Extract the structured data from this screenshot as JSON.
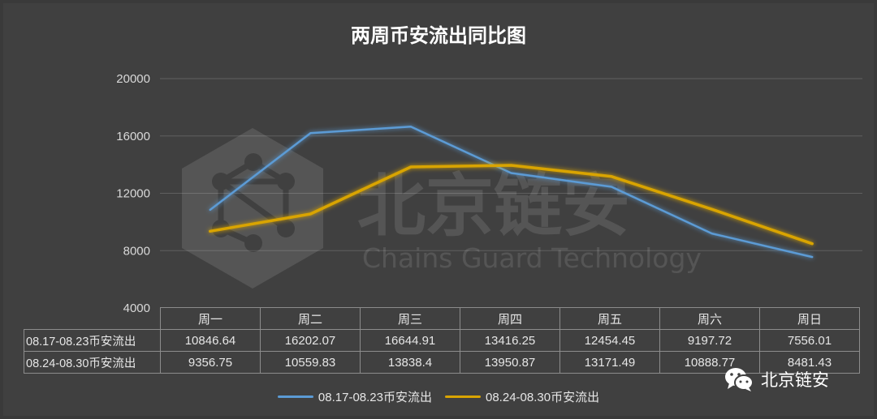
{
  "chart_data": {
    "type": "line",
    "title": "两周币安流出同比图",
    "categories": [
      "周一",
      "周二",
      "周三",
      "周四",
      "周五",
      "周六",
      "周日"
    ],
    "ylim": [
      4000,
      20000
    ],
    "yticks": [
      4000,
      8000,
      12000,
      16000,
      20000
    ],
    "grid": true,
    "legend": "bottom",
    "series": [
      {
        "name": "08.17-08.23币安流出",
        "color": "#5b9bd5",
        "values": [
          10846.64,
          16202.07,
          16644.91,
          13416.25,
          12454.45,
          9197.72,
          7556.01
        ],
        "labels": [
          "10846.64",
          "16202.07",
          "16644.91",
          "13416.25",
          "12454.45",
          "9197.72",
          "7556.01"
        ]
      },
      {
        "name": "08.24-08.30币安流出",
        "color": "#d9a400",
        "values": [
          9356.75,
          10559.83,
          13838.4,
          13950.87,
          13171.49,
          10888.77,
          8481.43
        ],
        "labels": [
          "9356.75",
          "10559.83",
          "13838.4",
          "13950.87",
          "13171.49",
          "10888.77",
          "8481.43"
        ]
      }
    ]
  },
  "watermark": {
    "cn": "北京链安",
    "en": "Chains Guard Technology"
  },
  "brand": {
    "name": "北京链安",
    "icon": "wechat-icon"
  }
}
